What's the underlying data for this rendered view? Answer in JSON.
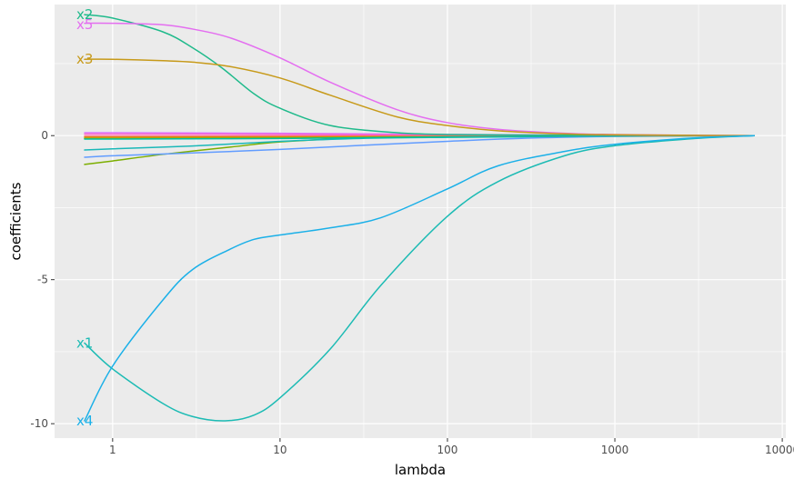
{
  "chart_data": {
    "type": "line",
    "title": "",
    "xlabel": "lambda",
    "ylabel": "coefficients",
    "x_scale": "log10",
    "xlim": [
      0.45,
      10500
    ],
    "ylim": [
      -10.5,
      4.55
    ],
    "x_ticks": [
      {
        "value": 1,
        "label": "1"
      },
      {
        "value": 10,
        "label": "10"
      },
      {
        "value": 100,
        "label": "100"
      },
      {
        "value": 1000,
        "label": "1000"
      },
      {
        "value": 10000,
        "label": "10000"
      }
    ],
    "y_ticks": [
      {
        "value": 0,
        "label": "0"
      },
      {
        "value": -5,
        "label": "-5"
      },
      {
        "value": -10,
        "label": "-10"
      }
    ],
    "grid": true,
    "background": "#ebebeb",
    "grid_color": "#ffffff",
    "legend": "none",
    "series": [
      {
        "name": "x2",
        "color": "#1fba8b",
        "label_y": 4.2,
        "x": [
          0.68,
          1,
          2,
          3,
          4.5,
          7,
          10,
          20,
          50,
          100,
          300,
          1000,
          3000,
          6800
        ],
        "y": [
          4.2,
          4.08,
          3.6,
          3.05,
          2.35,
          1.45,
          0.95,
          0.35,
          0.1,
          0.04,
          0.02,
          0.01,
          0.003,
          0
        ]
      },
      {
        "name": "x5",
        "color": "#e46ef0",
        "label_y": 3.85,
        "x": [
          0.68,
          1,
          2,
          3,
          5,
          10,
          20,
          50,
          100,
          200,
          500,
          1000,
          3000,
          6800
        ],
        "y": [
          3.9,
          3.9,
          3.85,
          3.7,
          3.4,
          2.7,
          1.85,
          0.9,
          0.45,
          0.22,
          0.08,
          0.04,
          0.01,
          0
        ]
      },
      {
        "name": "x3",
        "color": "#c79a1a",
        "label_y": 2.65,
        "x": [
          0.68,
          1,
          2,
          3,
          5,
          10,
          20,
          50,
          100,
          200,
          500,
          1000,
          3000,
          6800
        ],
        "y": [
          2.65,
          2.65,
          2.6,
          2.55,
          2.4,
          2.0,
          1.4,
          0.65,
          0.35,
          0.17,
          0.06,
          0.03,
          0.01,
          0
        ]
      },
      {
        "name": "x1",
        "color": "#1cbbb4",
        "label_y": -7.2,
        "x": [
          0.68,
          1,
          2,
          3,
          4.7,
          7,
          10,
          20,
          40,
          100,
          200,
          500,
          1000,
          3000,
          6800
        ],
        "y": [
          -7.2,
          -8.1,
          -9.3,
          -9.75,
          -9.9,
          -9.7,
          -9.1,
          -7.4,
          -5.2,
          -2.8,
          -1.6,
          -0.7,
          -0.35,
          -0.1,
          0
        ]
      },
      {
        "name": "x4",
        "color": "#1bb0e8",
        "label_y": -9.9,
        "x": [
          0.68,
          1,
          2,
          3,
          5,
          7,
          10,
          20,
          40,
          100,
          200,
          500,
          1000,
          3000,
          6800
        ],
        "y": [
          -9.9,
          -8.0,
          -5.7,
          -4.65,
          -3.95,
          -3.6,
          -3.45,
          -3.2,
          -2.85,
          -1.85,
          -1.05,
          -0.55,
          -0.3,
          -0.08,
          0
        ]
      },
      {
        "name": "",
        "color": "#7cae00",
        "x": [
          0.68,
          1,
          2,
          5,
          10,
          30,
          100,
          300,
          1000,
          6800
        ],
        "y": [
          -1.0,
          -0.88,
          -0.65,
          -0.4,
          -0.22,
          -0.08,
          -0.03,
          -0.01,
          0,
          0
        ]
      },
      {
        "name": "",
        "color": "#19b8b8",
        "x": [
          0.68,
          1,
          3,
          10,
          30,
          100,
          300,
          1000,
          6800
        ],
        "y": [
          -0.5,
          -0.46,
          -0.36,
          -0.2,
          -0.1,
          -0.06,
          -0.04,
          -0.015,
          0
        ]
      },
      {
        "name": "",
        "color": "#619cff",
        "x": [
          0.68,
          1,
          3,
          10,
          30,
          100,
          300,
          1000,
          6800
        ],
        "y": [
          -0.75,
          -0.7,
          -0.6,
          -0.48,
          -0.34,
          -0.2,
          -0.09,
          -0.03,
          0
        ]
      },
      {
        "name": "",
        "color": "#f8766d",
        "x": [
          0.68,
          1,
          10,
          100,
          1000,
          6800
        ],
        "y": [
          -0.02,
          -0.02,
          -0.015,
          -0.01,
          -0.005,
          0
        ]
      },
      {
        "name": "",
        "color": "#d39200",
        "x": [
          0.68,
          1,
          10,
          100,
          1000,
          6800
        ],
        "y": [
          -0.06,
          -0.06,
          -0.05,
          -0.03,
          -0.01,
          0
        ]
      },
      {
        "name": "",
        "color": "#93aa00",
        "x": [
          0.68,
          1,
          10,
          100,
          1000,
          6800
        ],
        "y": [
          -0.1,
          -0.1,
          -0.08,
          -0.04,
          -0.01,
          0
        ]
      },
      {
        "name": "",
        "color": "#00c19f",
        "x": [
          0.68,
          1,
          10,
          100,
          1000,
          6800
        ],
        "y": [
          -0.12,
          -0.12,
          -0.1,
          -0.05,
          -0.015,
          0
        ]
      },
      {
        "name": "",
        "color": "#db72fb",
        "x": [
          0.68,
          1,
          10,
          100,
          1000,
          6800
        ],
        "y": [
          0.1,
          0.1,
          0.08,
          0.04,
          0.01,
          0
        ]
      },
      {
        "name": "",
        "color": "#ff61c3",
        "x": [
          0.68,
          1,
          10,
          100,
          1000,
          6800
        ],
        "y": [
          0.05,
          0.05,
          0.04,
          0.02,
          0.01,
          0
        ]
      }
    ]
  }
}
